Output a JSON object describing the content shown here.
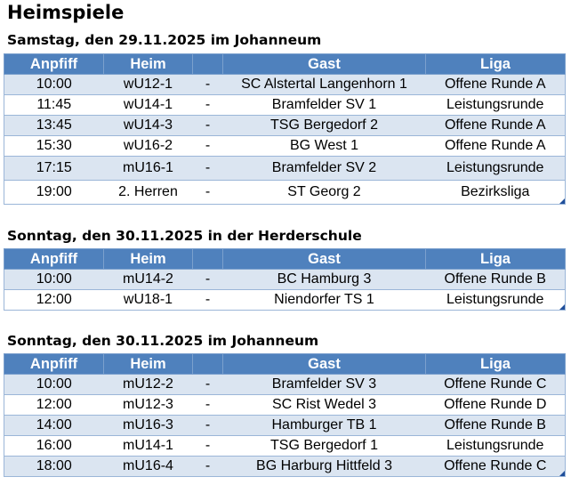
{
  "title": "Heimspiele",
  "columns": [
    "Anpfiff",
    "Heim",
    "",
    "Gast",
    "Liga"
  ],
  "sections": [
    {
      "heading": "Samstag, den 29.11.2025 im Johanneum",
      "rows": [
        {
          "anpfiff": "10:00",
          "heim": "wU12-1",
          "sep": "-",
          "gast": "SC Alstertal Langenhorn 1",
          "liga": "Offene Runde A"
        },
        {
          "anpfiff": "11:45",
          "heim": "wU14-1",
          "sep": "-",
          "gast": "Bramfelder SV 1",
          "liga": "Leistungsrunde"
        },
        {
          "anpfiff": "13:45",
          "heim": "wU14-3",
          "sep": "-",
          "gast": "TSG Bergedorf 2",
          "liga": "Offene Runde A"
        },
        {
          "anpfiff": "15:30",
          "heim": "wU16-2",
          "sep": "-",
          "gast": "BG West 1",
          "liga": "Offene Runde A"
        },
        {
          "anpfiff": "17:15",
          "heim": "mU16-1",
          "sep": "-",
          "gast": "Bramfelder SV 2",
          "liga": "Leistungsrunde"
        },
        {
          "anpfiff": "19:00",
          "heim": "2. Herren",
          "sep": "-",
          "gast": "ST Georg 2",
          "liga": "Bezirksliga"
        }
      ]
    },
    {
      "heading": "Sonntag, den 30.11.2025 in der Herderschule",
      "rows": [
        {
          "anpfiff": "10:00",
          "heim": "mU14-2",
          "sep": "-",
          "gast": "BC Hamburg 3",
          "liga": "Offene Runde B"
        },
        {
          "anpfiff": "12:00",
          "heim": "wU18-1",
          "sep": "-",
          "gast": "Niendorfer TS 1",
          "liga": "Leistungsrunde"
        }
      ]
    },
    {
      "heading": "Sonntag, den 30.11.2025 im Johanneum",
      "rows": [
        {
          "anpfiff": "10:00",
          "heim": "mU12-2",
          "sep": "-",
          "gast": "Bramfelder SV 3",
          "liga": "Offene Runde C"
        },
        {
          "anpfiff": "12:00",
          "heim": "mU12-3",
          "sep": "-",
          "gast": "SC Rist Wedel 3",
          "liga": "Offene Runde D"
        },
        {
          "anpfiff": "14:00",
          "heim": "mU16-3",
          "sep": "-",
          "gast": "Hamburger TB 1",
          "liga": "Offene Runde B"
        },
        {
          "anpfiff": "16:00",
          "heim": "mU14-1",
          "sep": "-",
          "gast": "TSG Bergedorf 1",
          "liga": "Leistungsrunde"
        },
        {
          "anpfiff": "18:00",
          "heim": "mU16-4",
          "sep": "-",
          "gast": "BG Harburg Hittfeld 3",
          "liga": "Offene Runde C"
        }
      ]
    }
  ]
}
